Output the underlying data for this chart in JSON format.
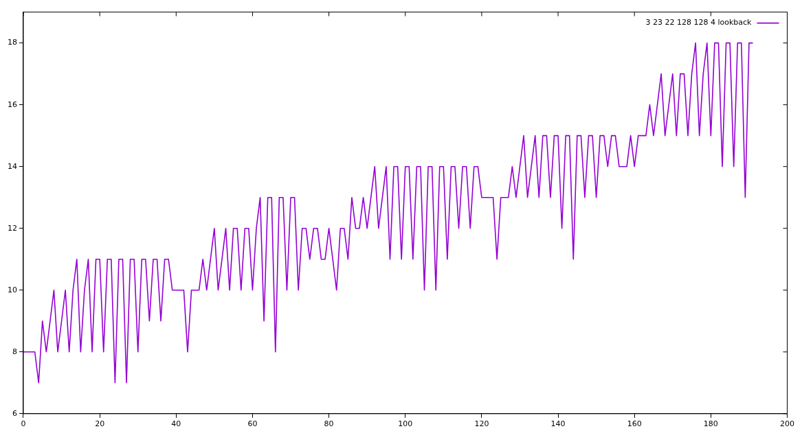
{
  "chart_data": {
    "type": "line",
    "x": [
      0,
      1,
      2,
      3,
      4,
      5,
      6,
      7,
      8,
      9,
      10,
      11,
      12,
      13,
      14,
      15,
      16,
      17,
      18,
      19,
      20,
      21,
      22,
      23,
      24,
      25,
      26,
      27,
      28,
      29,
      30,
      31,
      32,
      33,
      34,
      35,
      36,
      37,
      38,
      39,
      40,
      41,
      42,
      43,
      44,
      45,
      46,
      47,
      48,
      49,
      50,
      51,
      52,
      53,
      54,
      55,
      56,
      57,
      58,
      59,
      60,
      61,
      62,
      63,
      64,
      65,
      66,
      67,
      68,
      69,
      70,
      71,
      72,
      73,
      74,
      75,
      76,
      77,
      78,
      79,
      80,
      81,
      82,
      83,
      84,
      85,
      86,
      87,
      88,
      89,
      90,
      91,
      92,
      93,
      94,
      95,
      96,
      97,
      98,
      99,
      100,
      101,
      102,
      103,
      104,
      105,
      106,
      107,
      108,
      109,
      110,
      111,
      112,
      113,
      114,
      115,
      116,
      117,
      118,
      119,
      120,
      121,
      122,
      123,
      124,
      125,
      126,
      127,
      128,
      129,
      130,
      131,
      132,
      133,
      134,
      135,
      136,
      137,
      138,
      139,
      140,
      141,
      142,
      143,
      144,
      145,
      146,
      147,
      148,
      149,
      150,
      151,
      152,
      153,
      154,
      155,
      156,
      157,
      158,
      159,
      160,
      161,
      162,
      163,
      164,
      165,
      166,
      167,
      168,
      169,
      170,
      171,
      172,
      173,
      174,
      175,
      176,
      177,
      178,
      179,
      180,
      181,
      182,
      183,
      184,
      185,
      186,
      187,
      188,
      189,
      190,
      191
    ],
    "series": [
      {
        "name": "3 23 22 128 128 4 lookback",
        "color": "#9400d3",
        "values": [
          8,
          8,
          8,
          8,
          7,
          9,
          8,
          9,
          10,
          8,
          9,
          10,
          8,
          10,
          11,
          8,
          10,
          11,
          8,
          11,
          11,
          8,
          11,
          11,
          7,
          11,
          11,
          7,
          11,
          11,
          8,
          11,
          11,
          9,
          11,
          11,
          9,
          11,
          11,
          10,
          10,
          10,
          10,
          8,
          10,
          10,
          10,
          11,
          10,
          11,
          12,
          10,
          11,
          12,
          10,
          12,
          12,
          10,
          12,
          12,
          10,
          12,
          13,
          9,
          13,
          13,
          8,
          13,
          13,
          10,
          13,
          13,
          10,
          12,
          12,
          11,
          12,
          12,
          11,
          11,
          12,
          11,
          10,
          12,
          12,
          11,
          13,
          12,
          12,
          13,
          12,
          13,
          14,
          12,
          13,
          14,
          11,
          14,
          14,
          11,
          14,
          14,
          11,
          14,
          14,
          10,
          14,
          14,
          10,
          14,
          14,
          11,
          14,
          14,
          12,
          14,
          14,
          12,
          14,
          14,
          13,
          13,
          13,
          13,
          11,
          13,
          13,
          13,
          14,
          13,
          14,
          15,
          13,
          14,
          15,
          13,
          15,
          15,
          13,
          15,
          15,
          12,
          15,
          15,
          11,
          15,
          15,
          13,
          15,
          15,
          13,
          15,
          15,
          14,
          15,
          15,
          14,
          14,
          14,
          15,
          14,
          15,
          15,
          15,
          16,
          15,
          16,
          17,
          15,
          16,
          17,
          15,
          17,
          17,
          15,
          17,
          18,
          15,
          17,
          18,
          15,
          18,
          18,
          14,
          18,
          18,
          14,
          18,
          18,
          13,
          18,
          18
        ]
      }
    ],
    "xlim": [
      0,
      200
    ],
    "xticks": [
      0,
      20,
      40,
      60,
      80,
      100,
      120,
      140,
      160,
      180,
      200
    ],
    "ylim": [
      6,
      19
    ],
    "yticks": [
      6,
      8,
      10,
      12,
      14,
      16,
      18
    ],
    "grid": false,
    "legend": "top right",
    "marker": "none",
    "line_style": "solid"
  }
}
